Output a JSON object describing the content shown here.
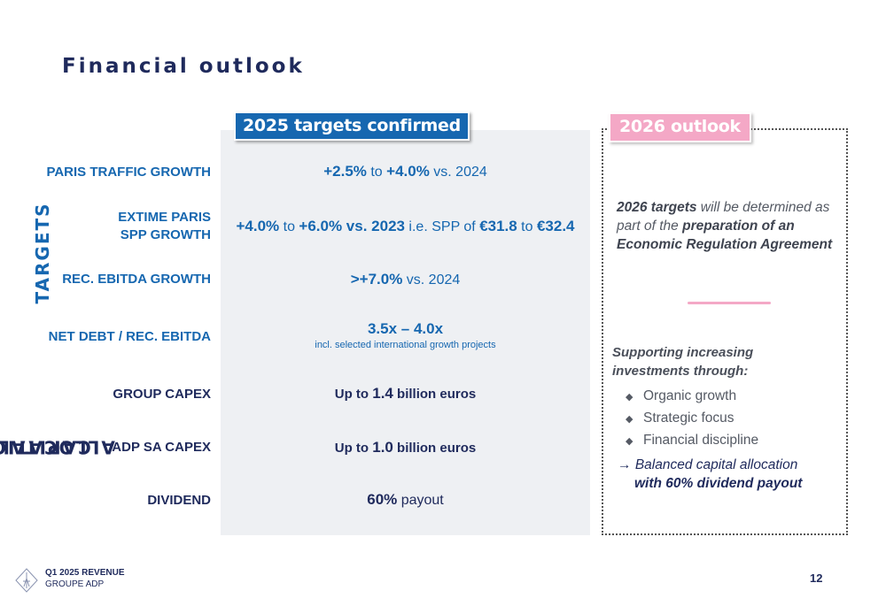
{
  "title": "Financial outlook",
  "left_banner": "2025 targets confirmed",
  "right_banner": "2026 outlook",
  "section_labels": {
    "targets": "TARGETS",
    "capital_1": "CAPITAL",
    "capital_2": "ALLOCATION"
  },
  "rows": [
    {
      "label": "PARIS TRAFFIC GROWTH",
      "v1": "+2.5%",
      "v2": " to ",
      "v3": "+4.0%",
      "v4": " vs. 2024"
    },
    {
      "label_1": "EXTIME PARIS",
      "label_2": "SPP GROWTH",
      "v1": "+4.0%",
      "v2": " to ",
      "v3": "+6.0% vs. 2023",
      "v4": " i.e. SPP of ",
      "v5": "€31.8",
      "v6": " to ",
      "v7": "€32.4"
    },
    {
      "label": "REC. EBITDA GROWTH",
      "v1": ">+7.0%",
      "v2": " vs. 2024"
    },
    {
      "label": "NET DEBT / REC. EBITDA",
      "v1": "3.5x – 4.0x",
      "sub": "incl. selected international growth projects"
    },
    {
      "label": "GROUP CAPEX",
      "v1": "Up to ",
      "v2": "1.4",
      "v3": " billion euros"
    },
    {
      "label": "ADP SA CAPEX",
      "v1": "Up to ",
      "v2": "1.0",
      "v3": " billion euros"
    },
    {
      "label": "DIVIDEND",
      "v1": "60%",
      "v2": " payout"
    }
  ],
  "outlook": {
    "p1_b1": "2026 targets",
    "p1_t1": " will be determined as part of the ",
    "p1_b2": "preparation of an Economic Regulation Agreement",
    "supporting": "Supporting increasing investments through:",
    "bullets": [
      "Organic growth",
      "Strategic focus",
      "Financial discipline"
    ],
    "bullet_symbol": "◆",
    "arrow": "→",
    "arrow_line_1": "Balanced capital allocation",
    "arrow_line_2": "with 60% dividend payout"
  },
  "footer": {
    "line1": "Q1 2025 REVENUE",
    "line2": "GROUPE ADP"
  },
  "page_number": "12",
  "colors": {
    "blue": "#1667b0",
    "navy": "#1f2a5c",
    "pink": "#f4a8c6",
    "panel": "#eef0f3"
  }
}
